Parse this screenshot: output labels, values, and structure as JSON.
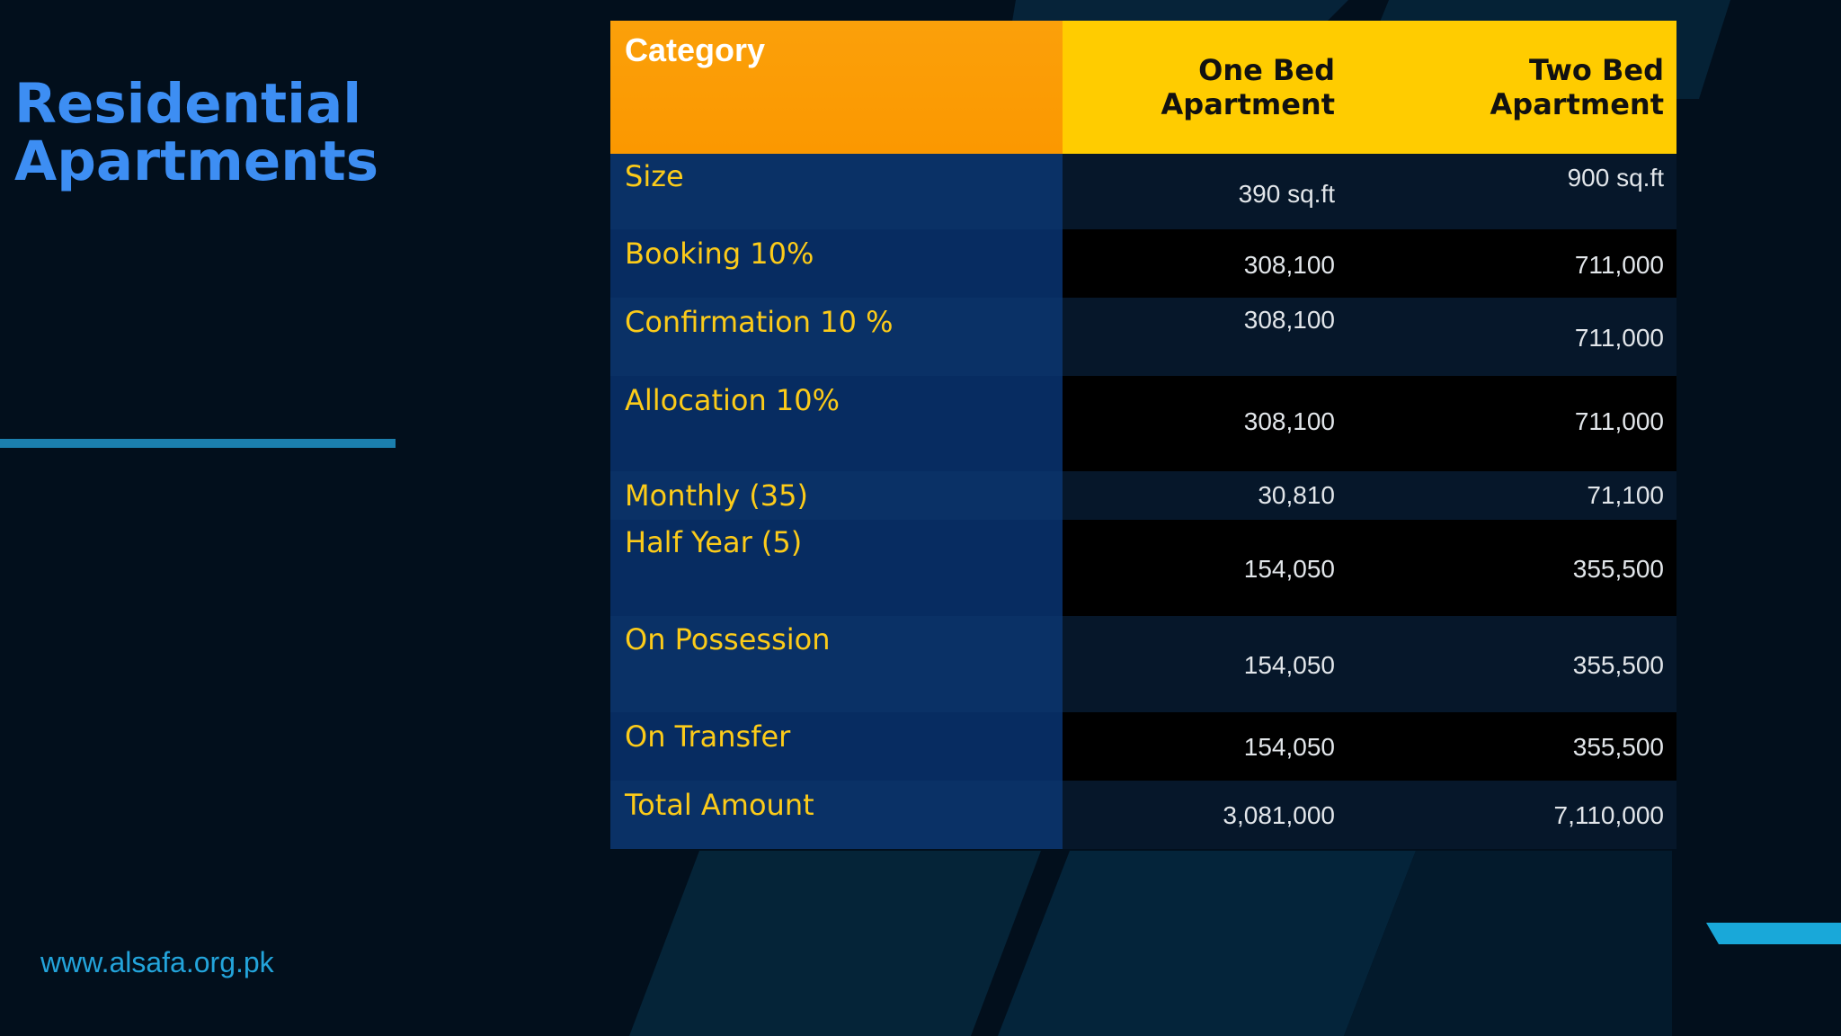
{
  "slide": {
    "title_line1": "Residential",
    "title_line2": "Apartments",
    "website": "www.alsafa.org.pk"
  },
  "colors": {
    "title": "#3d8ef3",
    "category_header": "#fb9c04",
    "apartment_header": "#ffcc00",
    "category_text": "#fccb19",
    "accent": "#1b7fae",
    "accent_tab": "#19a8d9"
  },
  "table": {
    "headers": {
      "category": "Category",
      "one_bed_line1": "One Bed",
      "one_bed_line2": "Apartment",
      "two_bed": "Two Bed Apartment"
    },
    "rows": [
      {
        "category": "Size",
        "one_bed": "390 sq.ft",
        "two_bed": "900 sq.ft"
      },
      {
        "category": "Booking 10%",
        "one_bed": "308,100",
        "two_bed": "711,000"
      },
      {
        "category": "Confirmation 10 %",
        "one_bed": "308,100",
        "two_bed": "711,000"
      },
      {
        "category": "Allocation 10%",
        "one_bed": "308,100",
        "two_bed": "711,000"
      },
      {
        "category": "Monthly (35)",
        "one_bed": "30,810",
        "two_bed": "71,100"
      },
      {
        "category": "Half Year (5)",
        "one_bed": "154,050",
        "two_bed": "355,500"
      },
      {
        "category": "On Possession",
        "one_bed": "154,050",
        "two_bed": "355,500"
      },
      {
        "category": "On Transfer",
        "one_bed": "154,050",
        "two_bed": "355,500"
      },
      {
        "category": "Total Amount",
        "one_bed": "3,081,000",
        "two_bed": "7,110,000"
      }
    ]
  }
}
